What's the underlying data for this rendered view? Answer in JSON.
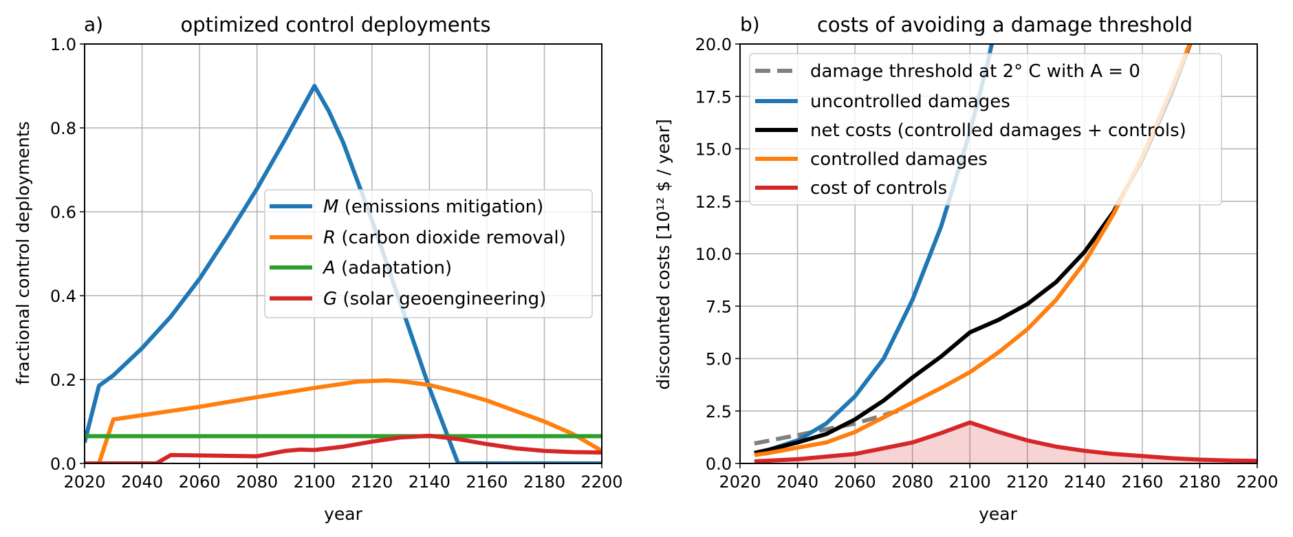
{
  "chart_data": [
    {
      "type": "line",
      "panel_label": "a)",
      "title": "optimized control deployments",
      "xlabel": "year",
      "ylabel": "fractional control deployments",
      "xlim": [
        2020,
        2200
      ],
      "ylim": [
        0,
        1.0
      ],
      "xticks": [
        "2020",
        "2040",
        "2060",
        "2080",
        "2100",
        "2120",
        "2140",
        "2160",
        "2180",
        "2200"
      ],
      "yticks": [
        "0.0",
        "0.2",
        "0.4",
        "0.6",
        "0.8",
        "1.0"
      ],
      "grid": true,
      "legend_position": "center-right",
      "series": [
        {
          "name": "M (emissions mitigation)",
          "symbol": "M",
          "desc": " (emissions mitigation)",
          "color": "#1f77b4",
          "x": [
            2020,
            2025,
            2030,
            2040,
            2050,
            2060,
            2070,
            2080,
            2090,
            2100,
            2105,
            2110,
            2120,
            2130,
            2140,
            2150,
            2160,
            2180,
            2200
          ],
          "y": [
            0.05,
            0.185,
            0.21,
            0.275,
            0.35,
            0.44,
            0.545,
            0.655,
            0.775,
            0.9,
            0.84,
            0.765,
            0.58,
            0.38,
            0.18,
            0.0,
            0.0,
            0.0,
            0.0
          ]
        },
        {
          "name": "R (carbon dioxide removal)",
          "symbol": "R",
          "desc": " (carbon dioxide removal)",
          "color": "#ff7f0e",
          "x": [
            2020,
            2025,
            2030,
            2040,
            2060,
            2080,
            2100,
            2115,
            2125,
            2130,
            2140,
            2150,
            2160,
            2170,
            2180,
            2190,
            2200
          ],
          "y": [
            0.0,
            0.0,
            0.105,
            0.115,
            0.135,
            0.158,
            0.18,
            0.195,
            0.198,
            0.196,
            0.187,
            0.17,
            0.15,
            0.125,
            0.1,
            0.07,
            0.03
          ]
        },
        {
          "name": "A (adaptation)",
          "symbol": "A",
          "desc": " (adaptation)",
          "color": "#2ca02c",
          "x": [
            2020,
            2200
          ],
          "y": [
            0.065,
            0.065
          ]
        },
        {
          "name": "G (solar geoengineering)",
          "symbol": "G",
          "desc": " (solar geoengineering)",
          "color": "#d62728",
          "x": [
            2020,
            2045,
            2050,
            2060,
            2070,
            2080,
            2090,
            2095,
            2100,
            2110,
            2120,
            2130,
            2140,
            2150,
            2160,
            2170,
            2180,
            2190,
            2200
          ],
          "y": [
            0.0,
            0.0,
            0.02,
            0.019,
            0.018,
            0.017,
            0.03,
            0.033,
            0.032,
            0.04,
            0.052,
            0.062,
            0.066,
            0.058,
            0.046,
            0.036,
            0.03,
            0.027,
            0.026
          ]
        }
      ]
    },
    {
      "type": "line",
      "panel_label": "b)",
      "title": "costs of avoiding a damage threshold",
      "xlabel": "year",
      "ylabel": "discounted costs [10¹² $ / year]",
      "xlim": [
        2020,
        2200
      ],
      "ylim": [
        0,
        20.0
      ],
      "xticks": [
        "2020",
        "2040",
        "2060",
        "2080",
        "2100",
        "2120",
        "2140",
        "2160",
        "2180",
        "2200"
      ],
      "yticks": [
        "0.0",
        "2.5",
        "5.0",
        "7.5",
        "10.0",
        "12.5",
        "15.0",
        "17.5",
        "20.0"
      ],
      "grid": true,
      "legend_position": "top-right",
      "series": [
        {
          "name": "damage threshold at 2° C with A = 0",
          "color": "#808080",
          "style": "dashed",
          "x": [
            2025,
            2040,
            2060,
            2075
          ],
          "y": [
            0.95,
            1.35,
            1.9,
            2.5
          ]
        },
        {
          "name": "uncontrolled damages",
          "color": "#1f77b4",
          "x": [
            2025,
            2030,
            2040,
            2050,
            2060,
            2070,
            2080,
            2090,
            2100,
            2106,
            2110
          ],
          "y": [
            0.5,
            0.65,
            1.1,
            1.9,
            3.2,
            5.0,
            7.8,
            11.3,
            15.8,
            19.0,
            21.5
          ]
        },
        {
          "name": "net costs (controlled damages + controls)",
          "color": "#000000",
          "x": [
            2025,
            2030,
            2040,
            2050,
            2060,
            2070,
            2080,
            2090,
            2100,
            2110,
            2120,
            2130,
            2140,
            2150,
            2160,
            2170,
            2178
          ],
          "y": [
            0.5,
            0.65,
            1.0,
            1.4,
            2.1,
            3.0,
            4.1,
            5.1,
            6.25,
            6.85,
            7.6,
            8.65,
            10.1,
            12.0,
            14.5,
            17.6,
            20.5
          ]
        },
        {
          "name": "controlled damages",
          "color": "#ff7f0e",
          "x": [
            2025,
            2030,
            2040,
            2050,
            2060,
            2070,
            2080,
            2090,
            2100,
            2110,
            2120,
            2130,
            2140,
            2150,
            2160,
            2170,
            2178
          ],
          "y": [
            0.4,
            0.5,
            0.75,
            1.0,
            1.5,
            2.2,
            2.9,
            3.6,
            4.35,
            5.3,
            6.4,
            7.8,
            9.6,
            11.9,
            14.6,
            17.8,
            20.5
          ]
        },
        {
          "name": "cost of controls",
          "color": "#d62728",
          "fill": "rgba(214,39,40,0.2)",
          "x": [
            2025,
            2040,
            2060,
            2080,
            2090,
            2100,
            2110,
            2120,
            2130,
            2140,
            2150,
            2160,
            2170,
            2180,
            2190,
            2200
          ],
          "y": [
            0.1,
            0.2,
            0.45,
            1.0,
            1.45,
            1.95,
            1.5,
            1.1,
            0.8,
            0.6,
            0.45,
            0.35,
            0.25,
            0.18,
            0.14,
            0.12
          ]
        }
      ]
    }
  ]
}
